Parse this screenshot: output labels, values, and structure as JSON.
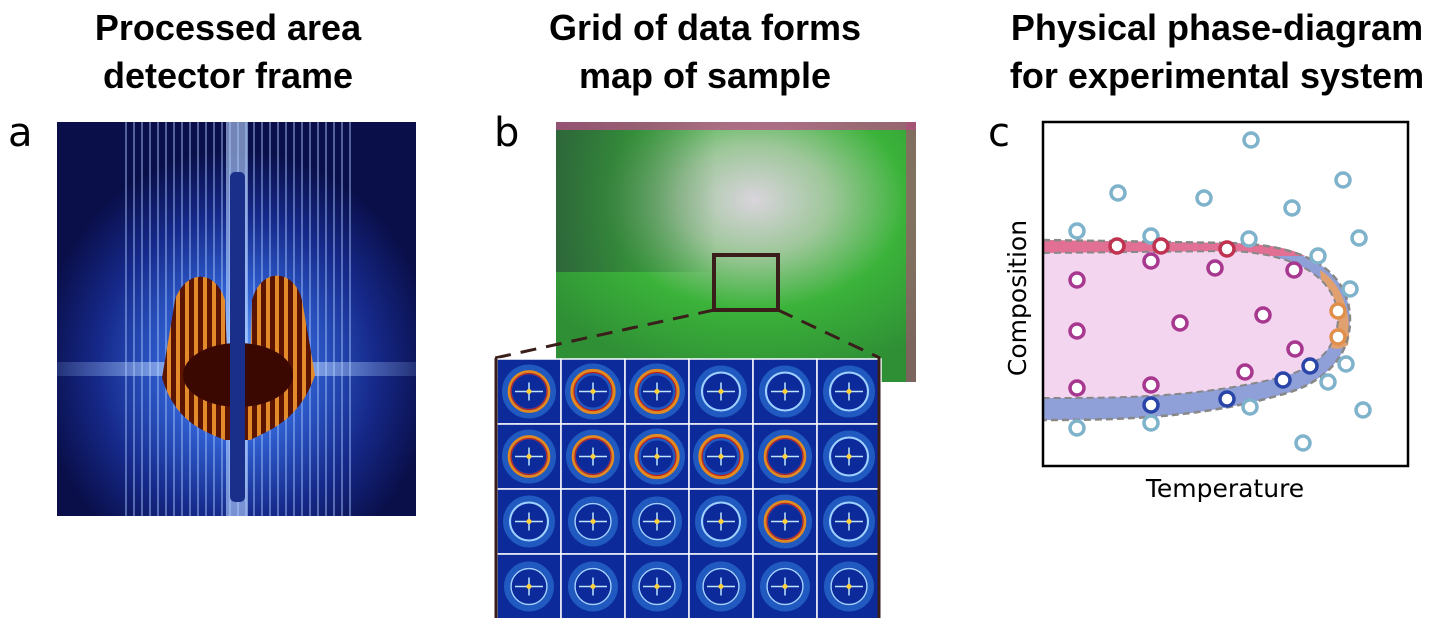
{
  "panels": [
    {
      "label": "a",
      "title": [
        "Processed area",
        "detector frame"
      ]
    },
    {
      "label": "b",
      "title": [
        "Grid of data forms",
        "map of sample"
      ]
    },
    {
      "label": "c",
      "title": [
        "Physical phase-diagram",
        "for experimental system"
      ],
      "x_label": "Temperature",
      "y_label": "Composition"
    }
  ]
}
